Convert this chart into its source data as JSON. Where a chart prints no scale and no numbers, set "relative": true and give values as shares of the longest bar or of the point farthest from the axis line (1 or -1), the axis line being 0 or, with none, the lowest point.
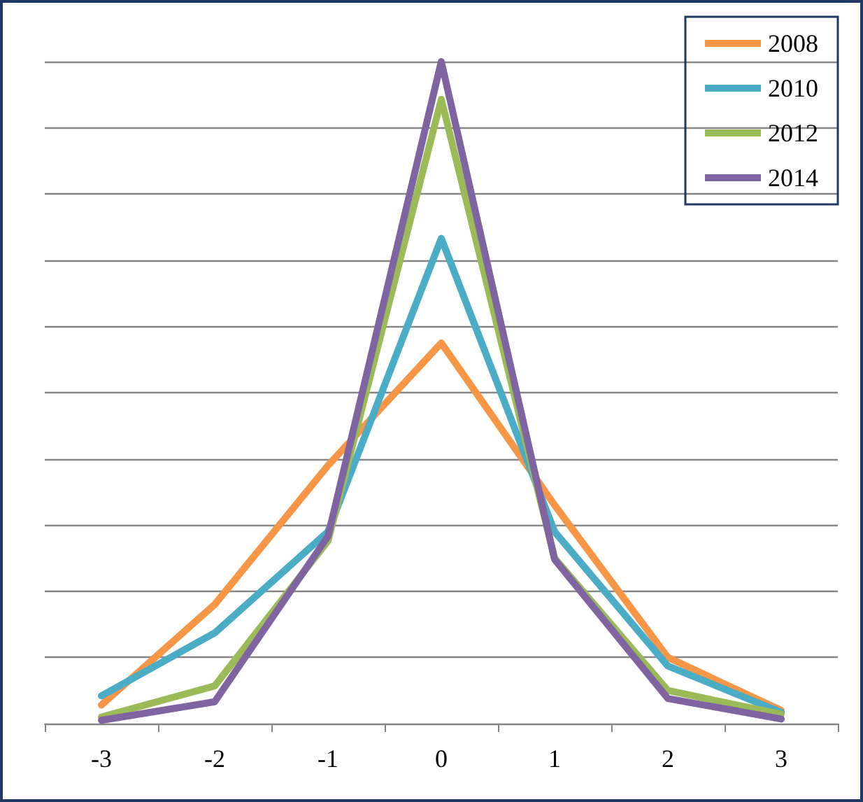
{
  "chart_data": {
    "type": "line",
    "relative": true,
    "categories": [
      "-3",
      "-2",
      "-1",
      "0",
      "1",
      "2",
      "3"
    ],
    "series": [
      {
        "name": "2008",
        "color": "#f79646",
        "values": [
          0.028,
          0.18,
          0.39,
          0.575,
          0.33,
          0.1,
          0.02
        ]
      },
      {
        "name": "2010",
        "color": "#4bacc6",
        "values": [
          0.042,
          0.137,
          0.29,
          0.733,
          0.29,
          0.087,
          0.017
        ]
      },
      {
        "name": "2012",
        "color": "#9bbb59",
        "values": [
          0.01,
          0.057,
          0.276,
          0.943,
          0.25,
          0.05,
          0.014
        ]
      },
      {
        "name": "2014",
        "color": "#8064a2",
        "values": [
          0.005,
          0.033,
          0.283,
          1,
          0.248,
          0.038,
          0.007
        ]
      }
    ],
    "grid": "y",
    "legend": "top right",
    "marker": "none",
    "line_style": "solid"
  }
}
